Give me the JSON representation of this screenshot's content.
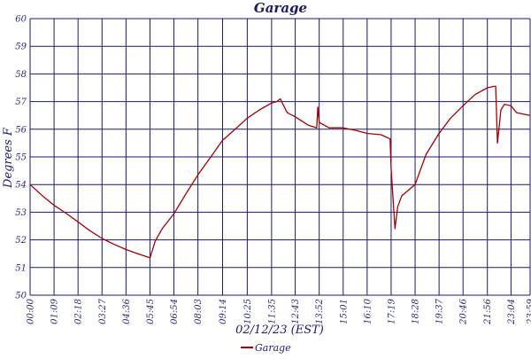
{
  "chart_data": {
    "type": "line",
    "title": "Garage",
    "xlabel": "02/12/23 (EST)",
    "ylabel": "Degrees F",
    "ylim": [
      50,
      60
    ],
    "yticks": [
      "50",
      "51",
      "52",
      "53",
      "54",
      "55",
      "56",
      "57",
      "58",
      "59",
      "60"
    ],
    "xticks": [
      "00:00",
      "01:09",
      "02:18",
      "03:27",
      "04:36",
      "05:45",
      "06:54",
      "08:03",
      "09:14",
      "10:25",
      "11:35",
      "12:43",
      "13:52",
      "15:01",
      "16:10",
      "17:19",
      "18:28",
      "19:37",
      "20:46",
      "21:56",
      "23:04",
      "23:59"
    ],
    "grid": true,
    "legend_position": "bottom-center",
    "colors": {
      "series": "#aa0000",
      "grid": "#1a1a6e",
      "text": "#1a1a6e"
    },
    "series": [
      {
        "name": "Garage",
        "x": [
          "00:00",
          "00:35",
          "01:09",
          "01:45",
          "02:18",
          "02:50",
          "03:27",
          "04:00",
          "04:36",
          "05:10",
          "05:45",
          "06:00",
          "06:20",
          "06:54",
          "07:30",
          "08:03",
          "08:40",
          "09:14",
          "09:50",
          "10:25",
          "11:00",
          "11:35",
          "11:50",
          "12:00",
          "12:20",
          "12:43",
          "13:20",
          "13:45",
          "13:48",
          "13:52",
          "14:20",
          "15:01",
          "15:40",
          "16:10",
          "16:50",
          "17:16",
          "17:19",
          "17:30",
          "17:38",
          "17:50",
          "18:28",
          "19:00",
          "19:37",
          "20:10",
          "20:46",
          "21:20",
          "21:56",
          "22:16",
          "22:20",
          "22:25",
          "22:35",
          "22:45",
          "23:04",
          "23:20",
          "23:59"
        ],
        "values": [
          54.0,
          53.6,
          53.25,
          52.95,
          52.65,
          52.35,
          52.05,
          51.85,
          51.65,
          51.5,
          51.35,
          51.95,
          52.4,
          52.95,
          53.7,
          54.35,
          55.0,
          55.6,
          56.0,
          56.4,
          56.7,
          56.95,
          57.0,
          57.1,
          56.6,
          56.45,
          56.15,
          56.05,
          56.8,
          56.25,
          56.05,
          56.05,
          55.95,
          55.85,
          55.8,
          55.65,
          54.6,
          52.4,
          53.2,
          53.6,
          54.0,
          55.1,
          55.85,
          56.4,
          56.85,
          57.25,
          57.5,
          57.55,
          57.55,
          55.5,
          56.7,
          56.9,
          56.85,
          56.6,
          56.5
        ]
      }
    ]
  }
}
